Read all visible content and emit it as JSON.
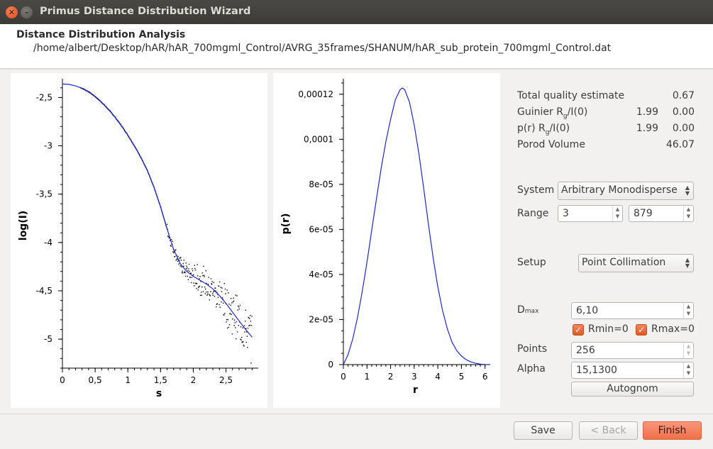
{
  "window": {
    "title": "Primus Distance Distribution Wizard",
    "close_glyph": "✕",
    "min_glyph": "–"
  },
  "header": {
    "title": "Distance Distribution Analysis",
    "path": "/home/albert/Desktop/hAR/hAR_700mgml_Control/AVRG_35frames/SHANUM/hAR_sub_protein_700mgml_Control.dat"
  },
  "stats": {
    "total_quality_label": "Total quality estimate",
    "total_quality_value": "0.67",
    "guinier_label_pre": "Guinier R",
    "guinier_label_sub": "g",
    "guinier_label_post": "/I(0)",
    "guinier_rg": "1.99",
    "guinier_i0": "0.00",
    "pr_label_pre": "p(r) R",
    "pr_label_sub": "g",
    "pr_label_post": "/I(0)",
    "pr_rg": "1.99",
    "pr_i0": "0.00",
    "porod_label": "Porod Volume",
    "porod_value": "46.07"
  },
  "controls": {
    "system_label": "System",
    "system_value": "Arbitrary Monodisperse",
    "range_label": "Range",
    "range_min": "3",
    "range_max": "879",
    "setup_label": "Setup",
    "setup_value": "Point Collimation",
    "dmax_label": "D",
    "dmax_sub": "max",
    "dmax_value": "6,10",
    "rmin_label": "Rmin=0",
    "rmin_checked": true,
    "rmax_label": "Rmax=0",
    "rmax_checked": true,
    "points_label": "Points",
    "points_value": "256",
    "alpha_label": "Alpha",
    "alpha_value": "15,1300",
    "autognom_label": "Autognom"
  },
  "buttons": {
    "save": "Save",
    "back": "< Back",
    "finish": "Finish"
  },
  "colors": {
    "fit_line": "#1a2ad0",
    "data_points": "#000000",
    "accent": "#f07048"
  },
  "chart_data": [
    {
      "type": "scatter",
      "title": "",
      "xlabel": "s",
      "ylabel": "log(I)",
      "xlim": [
        0,
        2.95
      ],
      "ylim": [
        -5.3,
        -2.35
      ],
      "xticks": [
        "0",
        "0,5",
        "1",
        "1,5",
        "2",
        "2,5"
      ],
      "yticks": [
        "-2,5",
        "-3",
        "-3,5",
        "-4",
        "-4,5",
        "-5"
      ],
      "fit_line": {
        "x": [
          0,
          0.1,
          0.2,
          0.3,
          0.4,
          0.5,
          0.6,
          0.7,
          0.8,
          0.9,
          1.0,
          1.1,
          1.2,
          1.3,
          1.4,
          1.5,
          1.6,
          1.7,
          1.8,
          1.9,
          2.0,
          2.1,
          2.2,
          2.3,
          2.4,
          2.5,
          2.6,
          2.7,
          2.8,
          2.9
        ],
        "y": [
          -2.36,
          -2.365,
          -2.38,
          -2.405,
          -2.44,
          -2.49,
          -2.55,
          -2.62,
          -2.7,
          -2.79,
          -2.89,
          -3.0,
          -3.12,
          -3.26,
          -3.43,
          -3.63,
          -3.86,
          -4.07,
          -4.22,
          -4.3,
          -4.35,
          -4.39,
          -4.43,
          -4.48,
          -4.55,
          -4.63,
          -4.72,
          -4.81,
          -4.9,
          -4.98
        ]
      }
    },
    {
      "type": "line",
      "title": "",
      "xlabel": "r",
      "ylabel": "p(r)",
      "xlim": [
        0,
        6.1
      ],
      "ylim": [
        0,
        0.000125
      ],
      "xticks": [
        "0",
        "1",
        "2",
        "3",
        "4",
        "5",
        "6"
      ],
      "yticks": [
        "0",
        "2e-05",
        "4e-05",
        "6e-05",
        "8e-05",
        "0,0001",
        "0,00012"
      ],
      "series": [
        {
          "x": [
            0,
            0.2,
            0.4,
            0.6,
            0.8,
            1.0,
            1.2,
            1.4,
            1.6,
            1.8,
            2.0,
            2.2,
            2.4,
            2.5,
            2.6,
            2.8,
            3.0,
            3.2,
            3.4,
            3.6,
            3.8,
            4.0,
            4.2,
            4.4,
            4.6,
            4.8,
            5.0,
            5.2,
            5.4,
            5.6,
            5.8,
            6.0,
            6.1
          ],
          "y": [
            0,
            4.5e-06,
            1.15e-05,
            2.1e-05,
            3.25e-05,
            4.55e-05,
            5.95e-05,
            7.35e-05,
            8.7e-05,
            9.9e-05,
            0.000109,
            0.0001175,
            0.000122,
            0.0001228,
            0.000122,
            0.0001165,
            0.0001065,
            9.35e-05,
            7.85e-05,
            6.25e-05,
            4.75e-05,
            3.45e-05,
            2.4e-05,
            1.6e-05,
            1e-05,
            6.2e-06,
            3.8e-06,
            2.2e-06,
            1.2e-06,
            6e-07,
            2e-07,
            5e-08,
            0
          ]
        }
      ]
    }
  ]
}
